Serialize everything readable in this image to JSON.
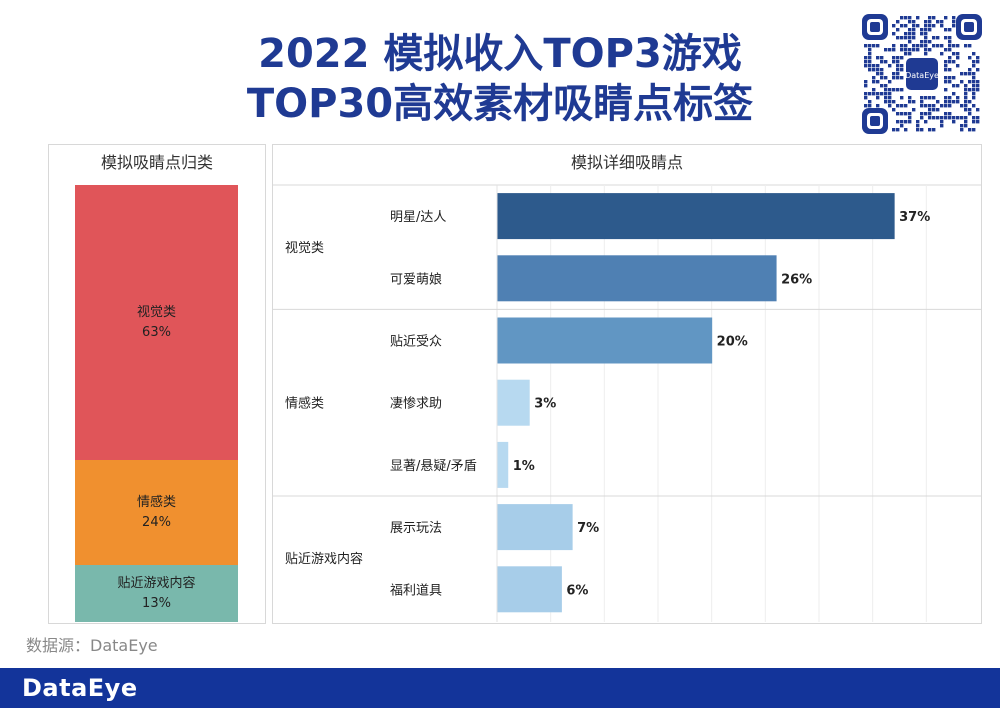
{
  "title_line1": "2022 模拟收入TOP3游戏",
  "title_line2": "TOP30高效素材吸睛点标签",
  "left_panel": {
    "title": "模拟吸睛点归类"
  },
  "right_panel": {
    "title": "模拟详细吸睛点"
  },
  "source": "数据源：DataEye",
  "footer_logo": "DataEye",
  "qr_logo": "DataEye",
  "colors": {
    "title": "#1f3a93",
    "footer": "#13349a",
    "seg_visual": "#e05559",
    "seg_emotion": "#f0902f",
    "seg_content": "#79b8ac"
  },
  "chart_data": [
    {
      "type": "bar",
      "orientation": "vertical-stacked",
      "title": "模拟吸睛点归类",
      "categories": [
        "视觉类",
        "情感类",
        "贴近游戏内容"
      ],
      "values": [
        63,
        24,
        13
      ],
      "value_labels": [
        "63%",
        "24%",
        "13%"
      ],
      "colors": [
        "#e05559",
        "#f0902f",
        "#79b8ac"
      ]
    },
    {
      "type": "bar",
      "orientation": "horizontal",
      "title": "模拟详细吸睛点",
      "groups": [
        {
          "name": "视觉类",
          "items": [
            {
              "label": "明星/达人",
              "value": 37,
              "text": "37%",
              "color": "#2d5a8c"
            },
            {
              "label": "可爱萌娘",
              "value": 26,
              "text": "26%",
              "color": "#4f80b3"
            }
          ]
        },
        {
          "name": "情感类",
          "items": [
            {
              "label": "贴近受众",
              "value": 20,
              "text": "20%",
              "color": "#6196c3"
            },
            {
              "label": "凄惨求助",
              "value": 3,
              "text": "3%",
              "color": "#b7d9f0"
            },
            {
              "label": "显著/悬疑/矛盾",
              "value": 1,
              "text": "1%",
              "color": "#b7d9f0"
            }
          ]
        },
        {
          "name": "贴近游戏内容",
          "items": [
            {
              "label": "展示玩法",
              "value": 7,
              "text": "7%",
              "color": "#a7cde9"
            },
            {
              "label": "福利道具",
              "value": 6,
              "text": "6%",
              "color": "#a7cde9"
            }
          ]
        }
      ],
      "xlim": [
        0,
        45
      ]
    }
  ]
}
